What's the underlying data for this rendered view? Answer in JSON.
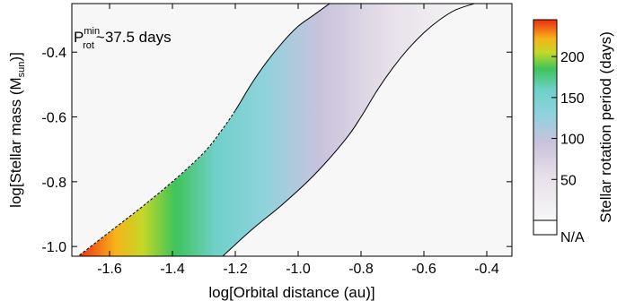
{
  "chart_data": {
    "type": "heatmap",
    "annotation": {
      "prefix": "P",
      "superscript": "min",
      "subscript": "rot",
      "suffix": "~37.5 days"
    },
    "xlabel": "log[Orbital distance (au)]",
    "ylabel_main": "log[Stellar mass (M",
    "ylabel_sub": "sun",
    "ylabel_close": ")]",
    "xlim": [
      -1.72,
      -0.32
    ],
    "ylim": [
      -1.03,
      -0.25
    ],
    "xticks": [
      -1.6,
      -1.4,
      -1.2,
      -1.0,
      -0.8,
      -0.6,
      -0.4
    ],
    "xtick_labels": [
      "-1.6",
      "-1.4",
      "-1.2",
      "-1.0",
      "-0.8",
      "-0.6",
      "-0.4"
    ],
    "yticks": [
      -1.0,
      -0.8,
      -0.6,
      -0.4
    ],
    "ytick_labels": [
      "-1.0",
      "-0.8",
      "-0.6",
      "-0.4"
    ],
    "colorbar": {
      "label": "Stellar rotation period (days)",
      "range": [
        0,
        245
      ],
      "ticks": [
        50,
        100,
        150,
        200
      ],
      "tick_labels": [
        "50",
        "100",
        "150",
        "200"
      ],
      "na_label": "N/A",
      "stops": [
        {
          "value": 0,
          "color": "#f7f7f7"
        },
        {
          "value": 55,
          "color": "#e6dfe8"
        },
        {
          "value": 95,
          "color": "#c9c2dc"
        },
        {
          "value": 130,
          "color": "#8ed3dc"
        },
        {
          "value": 160,
          "color": "#6fd0c8"
        },
        {
          "value": 185,
          "color": "#3fc35a"
        },
        {
          "value": 205,
          "color": "#c4d828"
        },
        {
          "value": 222,
          "color": "#f6b31a"
        },
        {
          "value": 245,
          "color": "#ee2c10"
        }
      ]
    },
    "boundaries": {
      "inner_curve": [
        [
          -1.7,
          -1.03
        ],
        [
          -1.6,
          -0.955
        ],
        [
          -1.5,
          -0.88
        ],
        [
          -1.4,
          -0.8
        ],
        [
          -1.3,
          -0.71
        ],
        [
          -1.25,
          -0.65
        ],
        [
          -1.2,
          -0.58
        ],
        [
          -1.15,
          -0.5
        ],
        [
          -1.1,
          -0.43
        ],
        [
          -1.05,
          -0.37
        ],
        [
          -1.0,
          -0.32
        ],
        [
          -0.95,
          -0.285
        ],
        [
          -0.9,
          -0.25
        ]
      ],
      "outer_curve": [
        [
          -1.24,
          -1.03
        ],
        [
          -1.15,
          -0.95
        ],
        [
          -1.05,
          -0.87
        ],
        [
          -0.95,
          -0.78
        ],
        [
          -0.85,
          -0.67
        ],
        [
          -0.8,
          -0.6
        ],
        [
          -0.75,
          -0.52
        ],
        [
          -0.7,
          -0.45
        ],
        [
          -0.65,
          -0.39
        ],
        [
          -0.6,
          -0.34
        ],
        [
          -0.55,
          -0.3
        ],
        [
          -0.5,
          -0.27
        ],
        [
          -0.44,
          -0.25
        ]
      ]
    }
  }
}
